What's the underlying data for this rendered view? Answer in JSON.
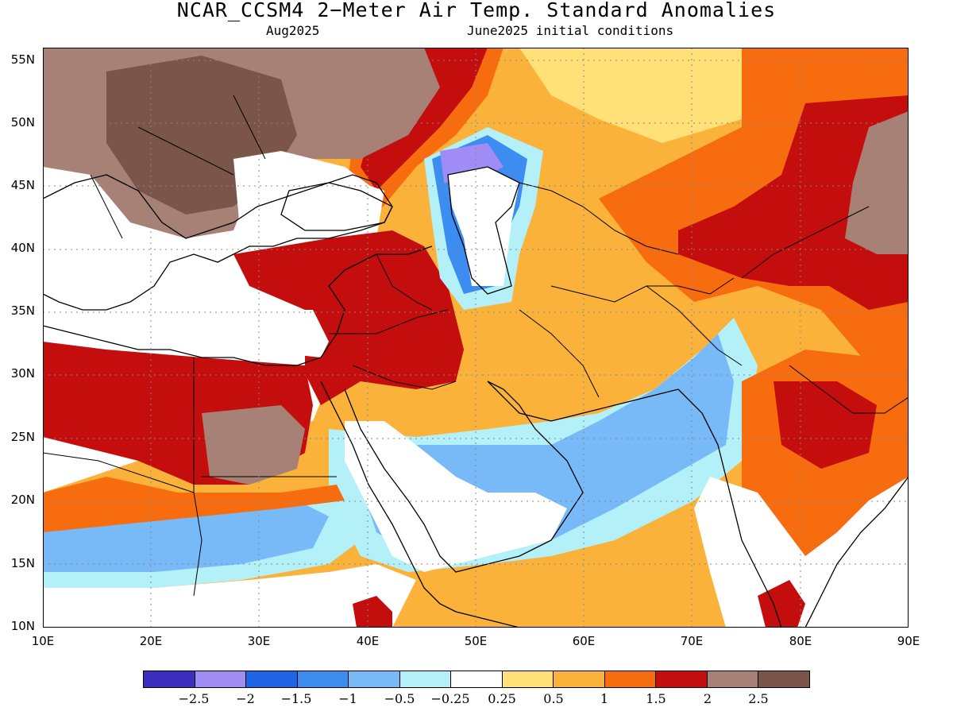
{
  "header": {
    "title": "NCAR_CCSM4 2−Meter Air Temp. Standard Anomalies",
    "valid_month": "Aug2025",
    "init": "June2025 initial conditions"
  },
  "axes": {
    "lat_ticks": [
      "55N",
      "50N",
      "45N",
      "40N",
      "35N",
      "30N",
      "25N",
      "20N",
      "15N",
      "10N"
    ],
    "lon_ticks": [
      "10E",
      "20E",
      "30E",
      "40E",
      "50E",
      "60E",
      "70E",
      "80E",
      "90E"
    ]
  },
  "legend": {
    "colors": [
      "#3c2fbf",
      "#a08cf5",
      "#1f64e6",
      "#3d8cf0",
      "#78b9f8",
      "#b4f0f8",
      "#ffffff",
      "#ffe178",
      "#fbb23a",
      "#f86c10",
      "#c40e0e",
      "#a78176",
      "#7b5549"
    ],
    "labels": [
      "−2.5",
      "−2",
      "−1.5",
      "−1",
      "−0.5",
      "−0.25",
      "0.25",
      "0.5",
      "1",
      "1.5",
      "2",
      "2.5"
    ]
  },
  "map": {
    "lon_range": [
      10,
      90
    ],
    "lat_range": [
      10,
      56
    ],
    "gridlines": "dotted"
  }
}
